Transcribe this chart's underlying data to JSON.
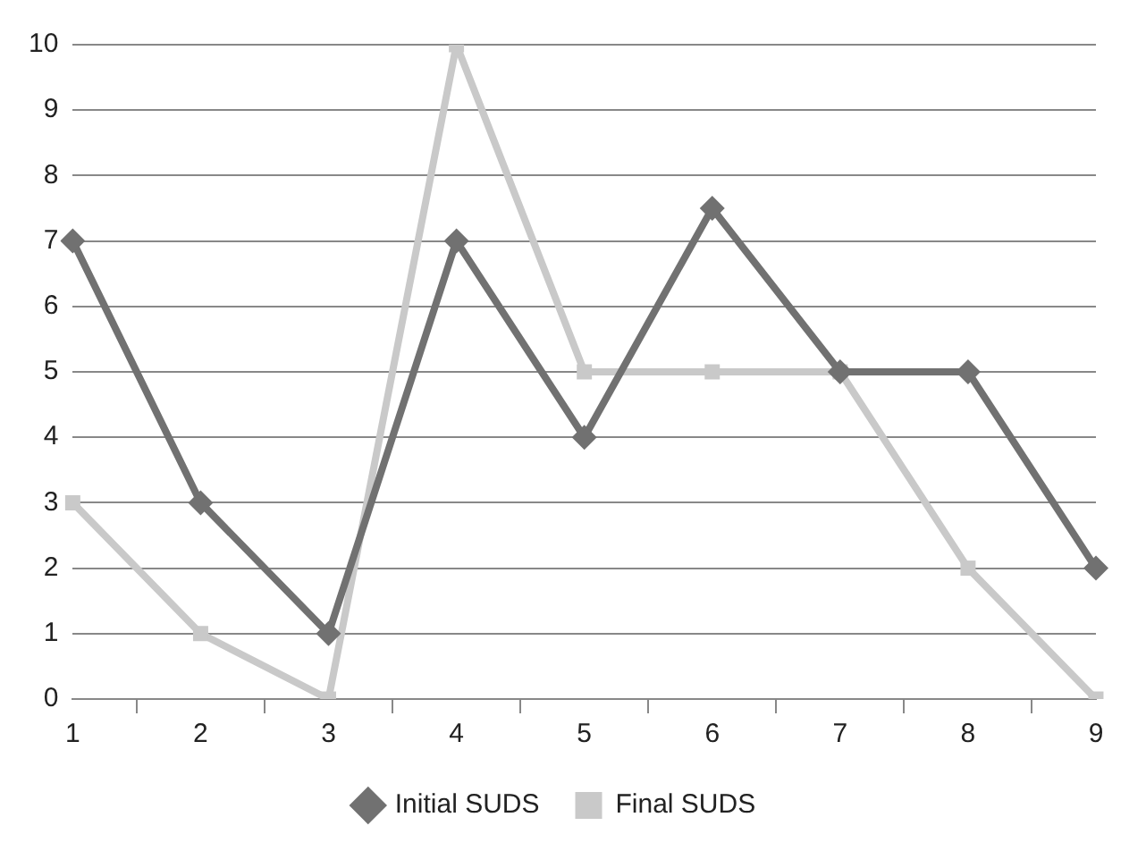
{
  "chart_data": {
    "type": "line",
    "categories": [
      "1",
      "2",
      "3",
      "4",
      "5",
      "6",
      "7",
      "8",
      "9"
    ],
    "series": [
      {
        "name": "Initial SUDS",
        "color": "#717171",
        "marker": "diamond",
        "values": [
          7,
          3,
          1,
          7,
          4,
          7.5,
          5,
          5,
          2
        ]
      },
      {
        "name": "Final SUDS",
        "color": "#c9c9c9",
        "marker": "square",
        "values": [
          3,
          1,
          0,
          10,
          5,
          5,
          5,
          2,
          0
        ]
      }
    ],
    "ylim": [
      0,
      10
    ],
    "yticks": [
      0,
      1,
      2,
      3,
      4,
      5,
      6,
      7,
      8,
      9,
      10
    ],
    "grid": "y",
    "legend": "bottom",
    "line_style": "solid"
  }
}
